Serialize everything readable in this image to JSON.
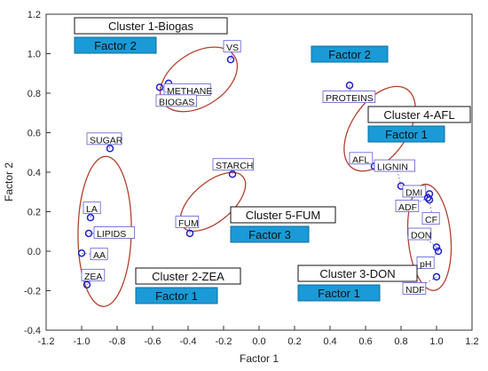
{
  "chart_data": {
    "type": "scatter",
    "xlabel": "Factor 1",
    "ylabel": "Factor 2",
    "xlim": [
      -1.2,
      1.2
    ],
    "ylim": [
      -0.4,
      1.2
    ],
    "xticks": [
      "-1.2",
      "-1.0",
      "-0.8",
      "-0.6",
      "-0.4",
      "-0.2",
      "0.0",
      "0.2",
      "0.4",
      "0.6",
      "0.8",
      "1.0",
      "1.2"
    ],
    "yticks": [
      "-0.4",
      "-0.2",
      "0.0",
      "0.2",
      "0.4",
      "0.6",
      "0.8",
      "1.0",
      "1.2"
    ],
    "grid": false,
    "colors": {
      "point": "#1f1fcc",
      "ellipse": "#b3402e",
      "label_box": "#5a5ad6",
      "factor_box": "#1a9ad6"
    },
    "points": [
      {
        "label": "VS",
        "x": -0.16,
        "y": 0.97
      },
      {
        "label": "METHANE",
        "x": -0.51,
        "y": 0.85
      },
      {
        "label": "BIOGAS",
        "x": -0.56,
        "y": 0.83
      },
      {
        "label": "PROTEINS",
        "x": 0.51,
        "y": 0.84
      },
      {
        "label": "SUGAR",
        "x": -0.84,
        "y": 0.52
      },
      {
        "label": "STARCH",
        "x": -0.15,
        "y": 0.39
      },
      {
        "label": "AFL",
        "x": 0.65,
        "y": 0.43
      },
      {
        "label": "LIGNIN",
        "x": 0.8,
        "y": 0.33
      },
      {
        "label": "DMI",
        "x": 0.96,
        "y": 0.29
      },
      {
        "label": "ADF",
        "x": 0.95,
        "y": 0.27
      },
      {
        "label": "CF",
        "x": 0.96,
        "y": 0.26
      },
      {
        "label": "DON",
        "x": 1.0,
        "y": 0.02
      },
      {
        "label": "pH",
        "x": 1.01,
        "y": 0.0
      },
      {
        "label": "NDF",
        "x": 1.0,
        "y": -0.13
      },
      {
        "label": "LA",
        "x": -0.95,
        "y": 0.17
      },
      {
        "label": "LIPIDS",
        "x": -0.96,
        "y": 0.09
      },
      {
        "label": "AA",
        "x": -1.0,
        "y": -0.01
      },
      {
        "label": "ZEA",
        "x": -0.97,
        "y": -0.17
      },
      {
        "label": "FUM",
        "x": -0.39,
        "y": 0.09
      }
    ],
    "clusters": [
      {
        "title": "Cluster 1-Biogas",
        "factor": "Factor 2"
      },
      {
        "title": "Cluster 2-ZEA",
        "factor": "Factor 1"
      },
      {
        "title": "Cluster 3-DON",
        "factor": "Factor 1"
      },
      {
        "title": "Cluster 4-AFL",
        "factor": "Factor 1"
      },
      {
        "title": "Cluster 5-FUM",
        "factor": "Factor 3"
      }
    ],
    "extra_factor_labels": [
      "Factor 2"
    ]
  }
}
